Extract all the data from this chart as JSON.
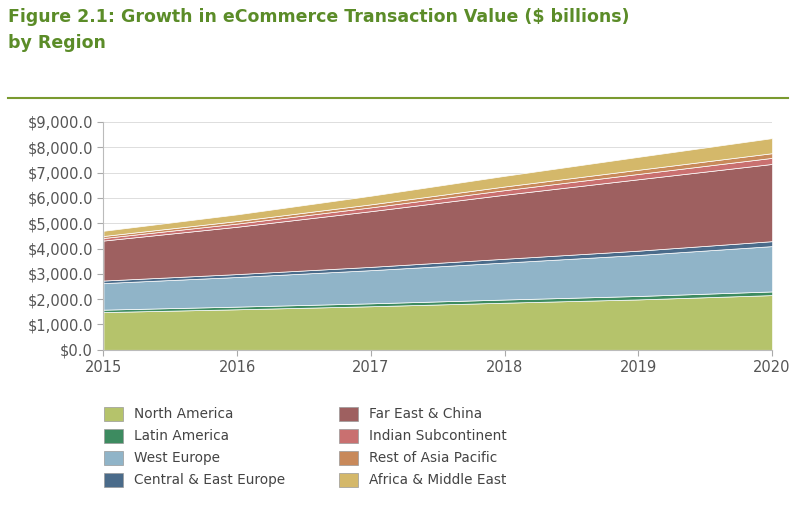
{
  "title_line1": "Figure 2.1: Growth in eCommerce Transaction Value ($ billions)",
  "title_line2": "by Region",
  "title_color": "#5b8c28",
  "years": [
    2015,
    2016,
    2017,
    2018,
    2019,
    2020
  ],
  "series": [
    {
      "label": "North America",
      "color": "#b5c36b",
      "values": [
        1490,
        1600,
        1720,
        1860,
        1990,
        2160
      ]
    },
    {
      "label": "Latin America",
      "color": "#3d8b60",
      "values": [
        95,
        105,
        115,
        125,
        135,
        145
      ]
    },
    {
      "label": "West Europe",
      "color": "#90b4c8",
      "values": [
        1050,
        1170,
        1310,
        1460,
        1620,
        1790
      ]
    },
    {
      "label": "Central & East Europe",
      "color": "#4a6b8a",
      "values": [
        100,
        115,
        130,
        150,
        170,
        195
      ]
    },
    {
      "label": "Far East & China",
      "color": "#9e6060",
      "values": [
        1580,
        1870,
        2200,
        2530,
        2820,
        3050
      ]
    },
    {
      "label": "Indian Subcontinent",
      "color": "#c97070",
      "values": [
        100,
        125,
        150,
        180,
        210,
        240
      ]
    },
    {
      "label": "Rest of Asia Pacific",
      "color": "#c8895a",
      "values": [
        80,
        100,
        120,
        145,
        165,
        185
      ]
    },
    {
      "label": "Africa & Middle East",
      "color": "#d4b86a",
      "values": [
        205,
        265,
        340,
        420,
        510,
        595
      ]
    }
  ],
  "ylim": [
    0,
    9000
  ],
  "yticks": [
    0,
    1000,
    2000,
    3000,
    4000,
    5000,
    6000,
    7000,
    8000,
    9000
  ],
  "background_color": "#ffffff",
  "separator_color": "#7a9a2f"
}
